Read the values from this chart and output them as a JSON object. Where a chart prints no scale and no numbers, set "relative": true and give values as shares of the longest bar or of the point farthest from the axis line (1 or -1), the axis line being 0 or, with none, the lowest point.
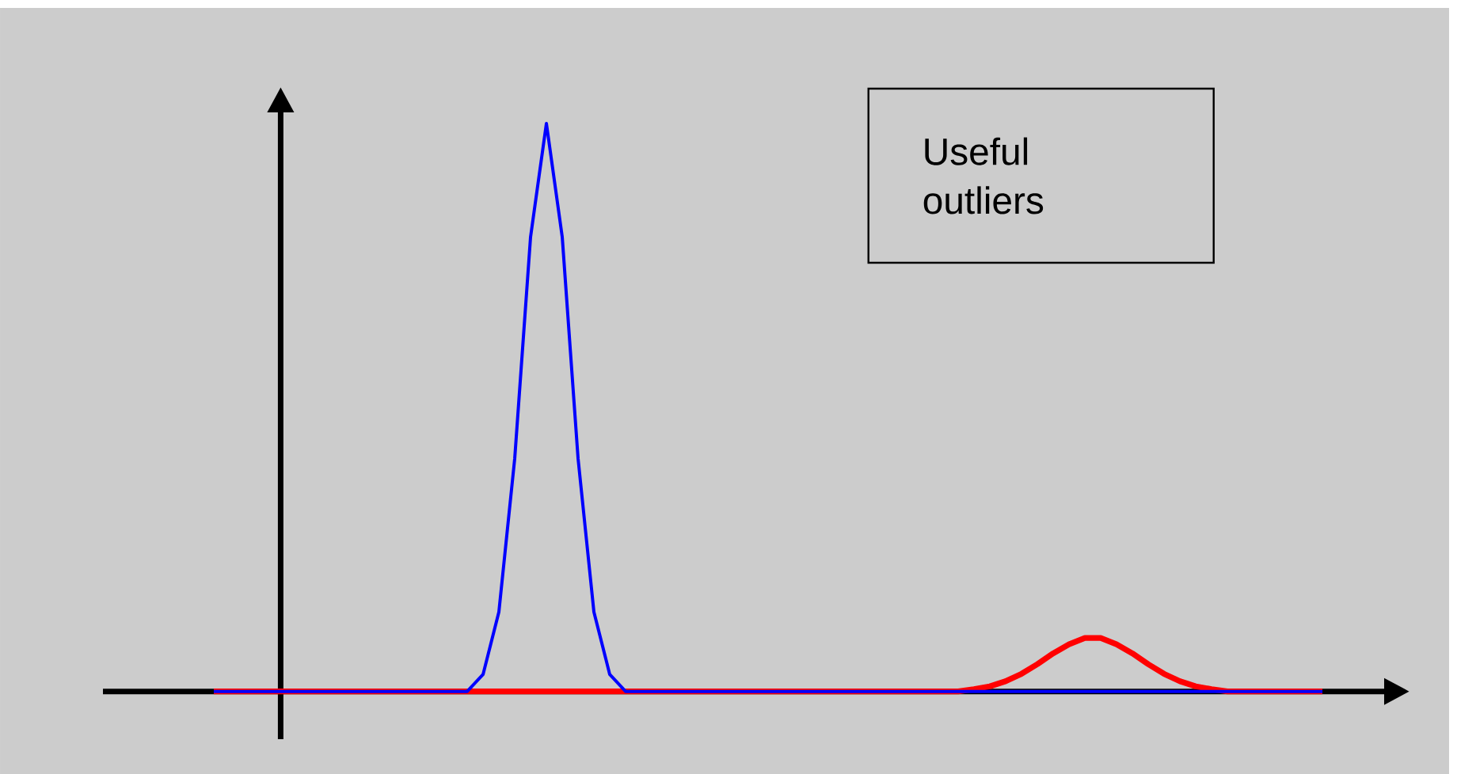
{
  "chart_data": {
    "type": "line",
    "relative": true,
    "marker": "none",
    "line_style": "solid",
    "annotations": [
      "Useful outliers"
    ],
    "categories": [
      null,
      null,
      null,
      null,
      null,
      null,
      null,
      null,
      null,
      null,
      null,
      null,
      null,
      null,
      null,
      null,
      null,
      null,
      null,
      null,
      null,
      null,
      null,
      null,
      null,
      null,
      null,
      null,
      null,
      null,
      null,
      null,
      null,
      null,
      null,
      null,
      null,
      null,
      null,
      null,
      null,
      null,
      null,
      null,
      null,
      null,
      null,
      null,
      null,
      null,
      null,
      null,
      null,
      null,
      null,
      null,
      null,
      null,
      null,
      null,
      null,
      null,
      null,
      null,
      null,
      null,
      null,
      null,
      null,
      null,
      null
    ],
    "series": [
      {
        "color": "#0000ff",
        "values": [
          0,
          0,
          0,
          0,
          0,
          0,
          0,
          0,
          0,
          0,
          0,
          0,
          0,
          0,
          0,
          0,
          0,
          0.03,
          0.14,
          0.41,
          0.8,
          1,
          0.8,
          0.41,
          0.14,
          0.03,
          0,
          0,
          0,
          0,
          0,
          0,
          0,
          0,
          0,
          0,
          0,
          0,
          0,
          0,
          0,
          0,
          0,
          0,
          0,
          0,
          0,
          0,
          0,
          0,
          0,
          0,
          0,
          0,
          0,
          0,
          0,
          0,
          0,
          0,
          0,
          0,
          0,
          0,
          0,
          0,
          0,
          0,
          0,
          0,
          0
        ]
      },
      {
        "color": "#ff0000",
        "values": [
          0,
          0,
          0,
          0,
          0,
          0,
          0,
          0,
          0,
          0,
          0,
          0,
          0,
          0,
          0,
          0,
          0,
          0,
          0,
          0,
          0,
          0,
          0,
          0,
          0,
          0,
          0,
          0,
          0,
          0,
          0,
          0,
          0,
          0,
          0,
          0,
          0,
          0,
          0,
          0,
          0,
          0,
          0,
          0,
          0,
          0,
          0,
          0,
          0.004,
          0.009,
          0.018,
          0.031,
          0.048,
          0.067,
          0.083,
          0.094,
          0.094,
          0.083,
          0.067,
          0.048,
          0.031,
          0.018,
          0.009,
          0.004,
          0,
          0,
          0,
          0,
          0,
          0,
          0
        ]
      }
    ]
  }
}
